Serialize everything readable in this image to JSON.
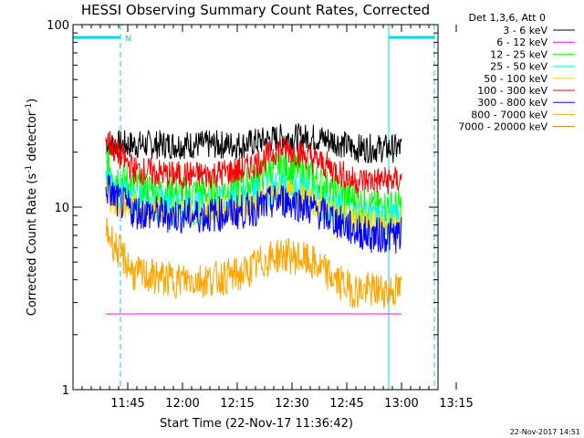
{
  "chart_data": {
    "type": "line",
    "title": "HESSI Observing Summary Count Rates, Corrected",
    "xlabel": "Start Time (22-Nov-17 11:36:42)",
    "ylabel_main": "Corrected Count Rate (s",
    "ylabel_sup1": "-1",
    "ylabel_mid": " detector",
    "ylabel_sup2": "-1",
    "ylabel_end": ")",
    "yscale": "log",
    "ylim": [
      1,
      100
    ],
    "xlim_minutes": [
      -6.7,
      93.3
    ],
    "x_ticks": [
      "11:45",
      "12:00",
      "12:15",
      "12:30",
      "12:45",
      "13:00",
      "13:15"
    ],
    "x_tick_minutes": [
      8.3,
      23.3,
      38.3,
      53.3,
      68.3,
      83.3,
      98.3
    ],
    "y_ticks": [
      "1",
      "10",
      "100"
    ],
    "y_tick_values": [
      1,
      10,
      100
    ],
    "legend_header": "Det 1,3,6, Att 0",
    "legend_placement": "right",
    "night_label": "N",
    "night_intervals_minutes": [
      [
        -6.7,
        6.3
      ],
      [
        79.8,
        92.3
      ]
    ],
    "data_window_minutes": [
      2.3,
      83.3
    ],
    "footer_timestamp": "22-Nov-2017 14:51",
    "series": [
      {
        "name": "3 - 6 keV",
        "color": "#000000",
        "x": [
          2.3,
          5,
          10,
          20,
          30,
          40,
          45,
          50,
          55,
          60,
          65,
          70,
          75,
          80,
          83.3
        ],
        "y": [
          23,
          22,
          22,
          22,
          22,
          22,
          23,
          24,
          24,
          24,
          23,
          21,
          21,
          21,
          21
        ],
        "noise": 0.08
      },
      {
        "name": "6 - 12 keV",
        "color": "#ff00ff",
        "x": [
          2.3,
          83.3
        ],
        "y": [
          2.6,
          2.6
        ],
        "noise": 0.0
      },
      {
        "name": "12 - 25 keV",
        "color": "#00ff00",
        "x": [
          2.3,
          5,
          10,
          20,
          30,
          40,
          45,
          50,
          55,
          60,
          65,
          70,
          75,
          80,
          83.3
        ],
        "y": [
          18,
          15,
          13,
          12,
          12,
          13,
          15,
          17,
          16,
          14,
          12,
          11,
          10,
          10,
          10
        ],
        "noise": 0.1
      },
      {
        "name": "25 - 50 keV",
        "color": "#00ffff",
        "x": [
          2.3,
          5,
          10,
          20,
          30,
          40,
          45,
          50,
          55,
          60,
          65,
          70,
          75,
          80,
          83.3
        ],
        "y": [
          14,
          12,
          11,
          10,
          10,
          11,
          12,
          13,
          12.5,
          11,
          10,
          9,
          8.5,
          8.5,
          8.5
        ],
        "noise": 0.1
      },
      {
        "name": "50 - 100 keV",
        "color": "#ffd700",
        "x": [
          2.3,
          5,
          10,
          20,
          30,
          40,
          45,
          50,
          55,
          60,
          65,
          70,
          75,
          80,
          83.3
        ],
        "y": [
          12,
          10.5,
          10,
          9.5,
          9.5,
          10,
          11,
          12,
          11.5,
          10.5,
          9.5,
          8.5,
          8,
          8,
          8
        ],
        "noise": 0.08
      },
      {
        "name": "100 - 300 keV",
        "color": "#ff0000",
        "x": [
          2.3,
          5,
          10,
          20,
          30,
          40,
          45,
          50,
          55,
          60,
          65,
          70,
          75,
          80,
          83.3
        ],
        "y": [
          24,
          20,
          16,
          15,
          15,
          16,
          18,
          21,
          20,
          18,
          16,
          14,
          14,
          14,
          14
        ],
        "noise": 0.08
      },
      {
        "name": "300 - 800 keV",
        "color": "#0000ff",
        "x": [
          2.3,
          5,
          10,
          20,
          30,
          40,
          45,
          50,
          55,
          60,
          65,
          70,
          75,
          80,
          83.3
        ],
        "y": [
          13,
          11,
          9.5,
          9,
          9,
          9.5,
          10,
          11,
          10.5,
          9.5,
          8.5,
          7.5,
          7,
          7,
          7
        ],
        "noise": 0.1
      },
      {
        "name": "800 - 7000 keV",
        "color": "#ffa500",
        "x": [
          2.3,
          5,
          10,
          20,
          30,
          40,
          45,
          50,
          55,
          60,
          65,
          70,
          75,
          80,
          83.3
        ],
        "y": [
          7.5,
          6,
          4.3,
          4.0,
          4.0,
          4.3,
          5,
          5.5,
          5.3,
          4.8,
          4.0,
          3.5,
          3.5,
          3.5,
          3.5
        ],
        "noise": 0.1
      },
      {
        "name": "7000 - 20000 keV",
        "color": "#b8860b",
        "x": [
          2.3,
          83.3
        ],
        "y": [
          1.0,
          1.0
        ],
        "noise": 0.0
      }
    ]
  }
}
